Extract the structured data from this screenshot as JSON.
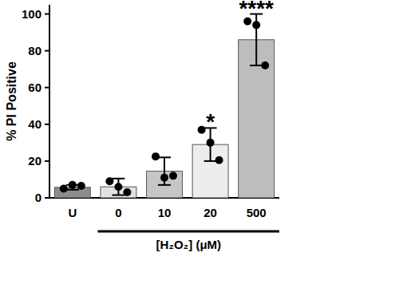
{
  "chart_data": {
    "type": "bar",
    "y_label": "% PI Positive",
    "x_label": "[H₂O₂] (μM)",
    "categories": [
      "U",
      "0",
      "10",
      "20",
      "500"
    ],
    "values": [
      5.7,
      6,
      14.5,
      29,
      86
    ],
    "errors": [
      1.3,
      4.5,
      7.5,
      9,
      14
    ],
    "points": [
      [
        5,
        7,
        6.5
      ],
      [
        9,
        6,
        3
      ],
      [
        22.5,
        11,
        12
      ],
      [
        37,
        30,
        20.5
      ],
      [
        96,
        94,
        72
      ]
    ],
    "annotations": [
      null,
      null,
      null,
      "*",
      "****"
    ],
    "colors": [
      "#8c8c8c",
      "#e2e2e2",
      "#c6c6c6",
      "#ededed",
      "#bdbdbd"
    ],
    "ylim": [
      0,
      105
    ],
    "yticks": [
      0,
      20,
      40,
      60,
      80,
      100
    ],
    "grid": false
  }
}
